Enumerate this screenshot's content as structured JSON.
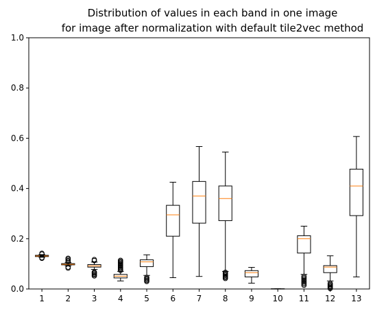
{
  "chart_data": {
    "type": "box",
    "title": [
      "Distribution of values in each band in one image",
      "for image after normalization with default tile2vec method"
    ],
    "xlabel": "",
    "ylabel": "",
    "ylim": [
      0,
      1.0
    ],
    "yticks": [
      "0.0",
      "0.2",
      "0.4",
      "0.6",
      "0.8",
      "1.0"
    ],
    "categories": [
      "1",
      "2",
      "3",
      "4",
      "5",
      "6",
      "7",
      "8",
      "9",
      "10",
      "11",
      "12",
      "13"
    ],
    "boxes": [
      {
        "label": "1",
        "whislo": 0.126,
        "q1": 0.129,
        "med": 0.131,
        "q3": 0.134,
        "whishi": 0.137,
        "fliers": [
          0.122,
          0.125,
          0.139,
          0.142
        ]
      },
      {
        "label": "2",
        "whislo": 0.092,
        "q1": 0.096,
        "med": 0.098,
        "q3": 0.101,
        "whishi": 0.105,
        "fliers": [
          0.083,
          0.087,
          0.109,
          0.113,
          0.118,
          0.122
        ]
      },
      {
        "label": "3",
        "whislo": 0.078,
        "q1": 0.087,
        "med": 0.092,
        "q3": 0.097,
        "whishi": 0.107,
        "fliers": [
          0.052,
          0.056,
          0.06,
          0.064,
          0.067,
          0.113,
          0.117
        ]
      },
      {
        "label": "4",
        "whislo": 0.032,
        "q1": 0.044,
        "med": 0.051,
        "q3": 0.058,
        "whishi": 0.07,
        "fliers": [
          0.074,
          0.078,
          0.082,
          0.086,
          0.09,
          0.094,
          0.098,
          0.102,
          0.106,
          0.11,
          0.114
        ]
      },
      {
        "label": "5",
        "whislo": 0.054,
        "q1": 0.089,
        "med": 0.108,
        "q3": 0.116,
        "whishi": 0.136,
        "fliers": [
          0.03,
          0.034,
          0.038,
          0.042,
          0.046
        ]
      },
      {
        "label": "6",
        "whislo": 0.045,
        "q1": 0.21,
        "med": 0.295,
        "q3": 0.333,
        "whishi": 0.425,
        "fliers": []
      },
      {
        "label": "7",
        "whislo": 0.05,
        "q1": 0.262,
        "med": 0.37,
        "q3": 0.428,
        "whishi": 0.567,
        "fliers": []
      },
      {
        "label": "8",
        "whislo": 0.07,
        "q1": 0.272,
        "med": 0.36,
        "q3": 0.41,
        "whishi": 0.545,
        "fliers": [
          0.042,
          0.046,
          0.05,
          0.054,
          0.058,
          0.062,
          0.066
        ]
      },
      {
        "label": "9",
        "whislo": 0.023,
        "q1": 0.048,
        "med": 0.065,
        "q3": 0.073,
        "whishi": 0.086,
        "fliers": []
      },
      {
        "label": "10",
        "whislo": 0.0,
        "q1": 0.0,
        "med": 0.0,
        "q3": 0.001,
        "whishi": 0.001,
        "fliers": []
      },
      {
        "label": "11",
        "whislo": 0.058,
        "q1": 0.143,
        "med": 0.2,
        "q3": 0.212,
        "whishi": 0.25,
        "fliers": [
          0.015,
          0.02,
          0.025,
          0.03,
          0.035,
          0.04,
          0.045,
          0.05
        ]
      },
      {
        "label": "12",
        "whislo": 0.032,
        "q1": 0.065,
        "med": 0.087,
        "q3": 0.093,
        "whishi": 0.132,
        "fliers": [
          0.002,
          0.006,
          0.01,
          0.014,
          0.018,
          0.022
        ]
      },
      {
        "label": "13",
        "whislo": 0.048,
        "q1": 0.292,
        "med": 0.41,
        "q3": 0.477,
        "whishi": 0.607,
        "fliers": []
      }
    ],
    "colors": {
      "box": "#000000",
      "median": "#ff7f0e",
      "background": "#ffffff"
    },
    "grid": false,
    "legend": "none"
  }
}
